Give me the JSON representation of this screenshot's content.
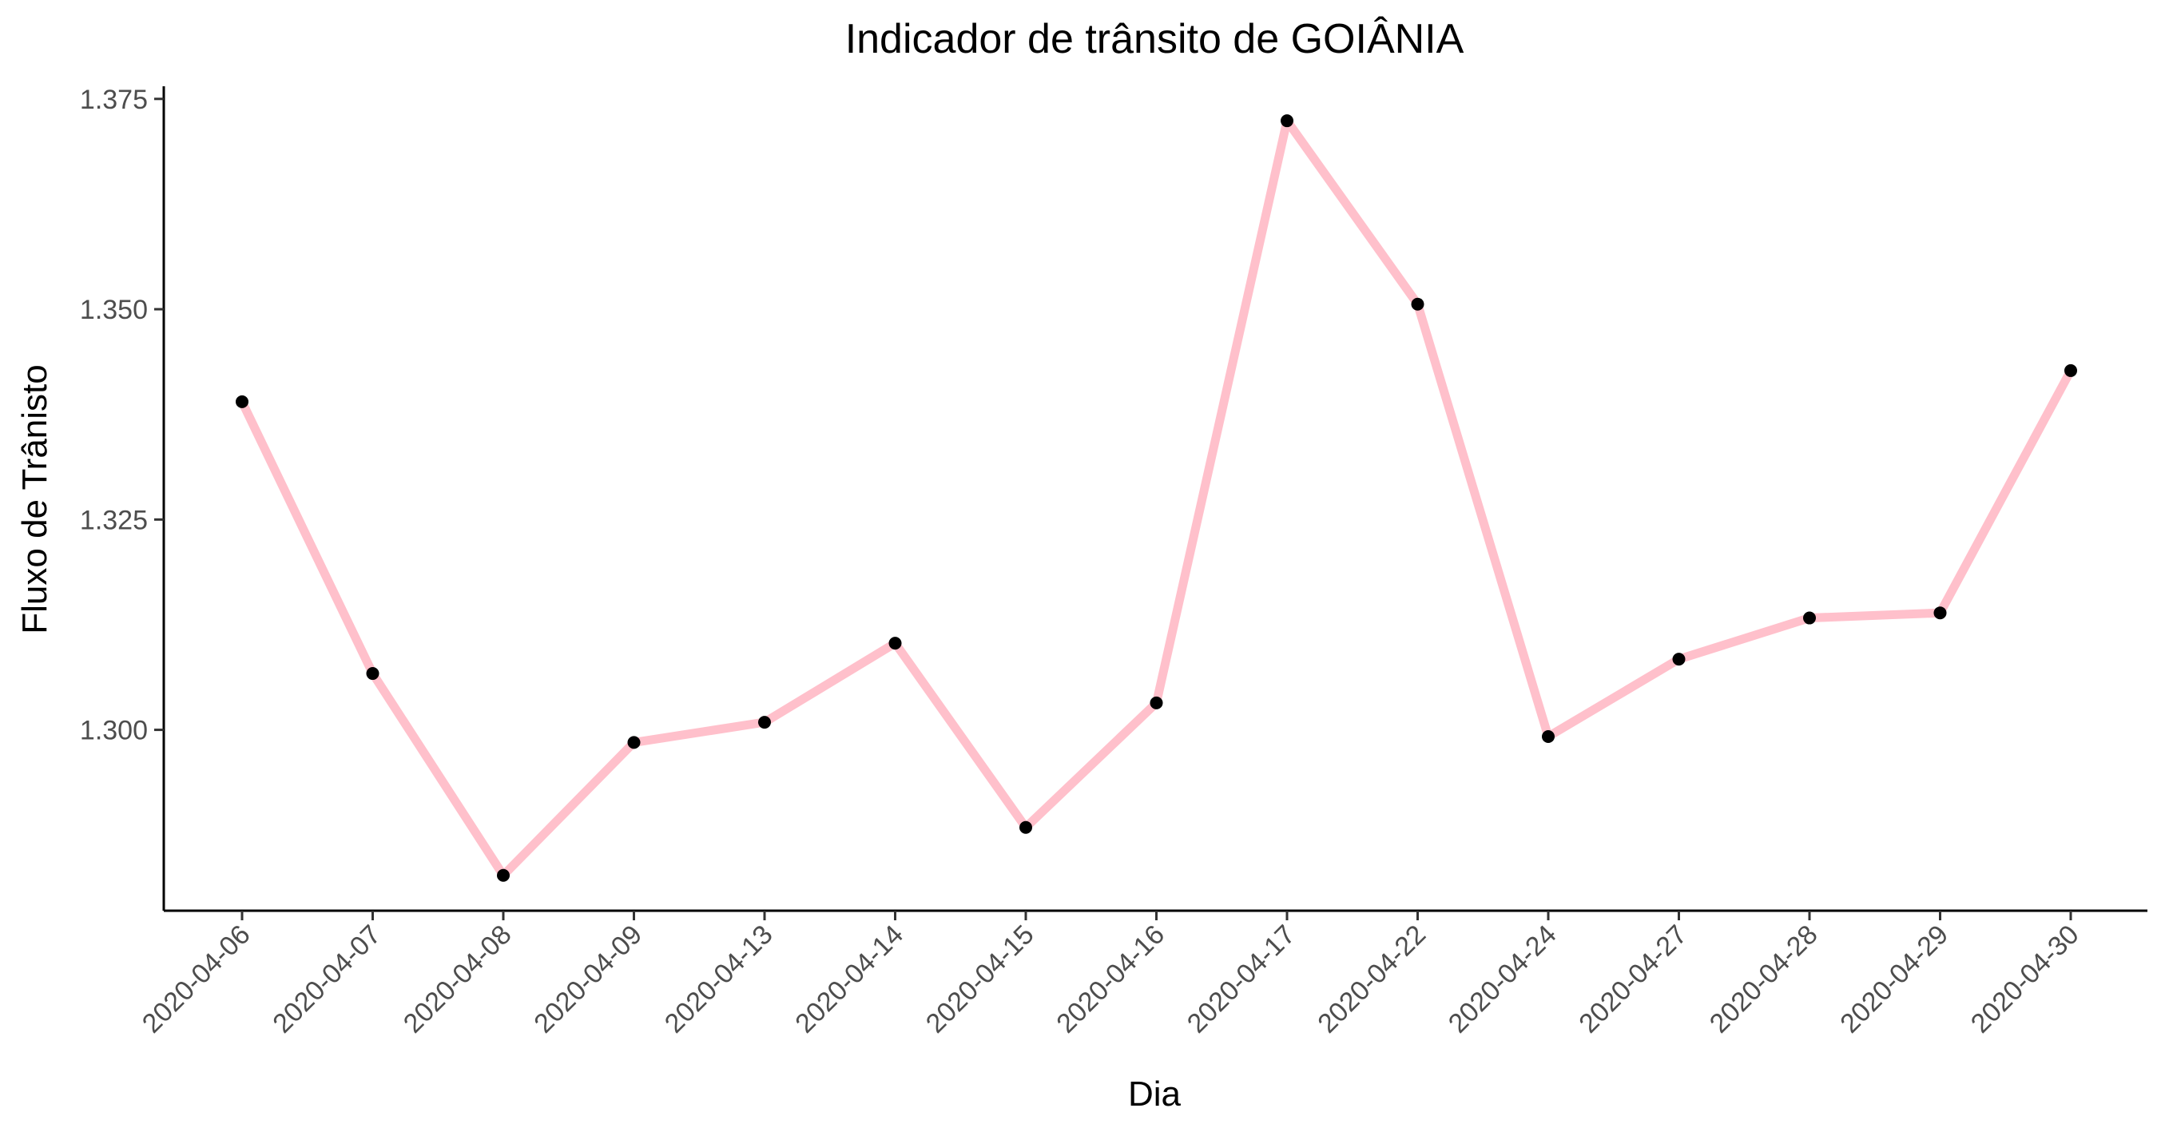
{
  "chart_data": {
    "type": "line",
    "title": "Indicador de trânsito de GOIÂNIA",
    "xlabel": "Dia",
    "ylabel": "Fluxo de Trânisto",
    "categories": [
      "2020-04-06",
      "2020-04-07",
      "2020-04-08",
      "2020-04-09",
      "2020-04-13",
      "2020-04-14",
      "2020-04-15",
      "2020-04-16",
      "2020-04-17",
      "2020-04-22",
      "2020-04-24",
      "2020-04-27",
      "2020-04-28",
      "2020-04-29",
      "2020-04-30"
    ],
    "series": [
      {
        "values": [
          1.339,
          1.3067,
          1.2827,
          1.2985,
          1.3009,
          1.3103,
          1.2884,
          1.3032,
          1.3724,
          1.3506,
          1.2992,
          1.3084,
          1.3133,
          1.3139,
          1.3427
        ]
      }
    ],
    "y_ticks": [
      "1.300",
      "1.325",
      "1.350",
      "1.375"
    ],
    "y_tick_values": [
      1.3,
      1.325,
      1.35,
      1.375
    ],
    "ylim": [
      1.2785,
      1.3765
    ],
    "grid": false,
    "line_color": "#FFC0CB",
    "point_color": "#000000"
  }
}
